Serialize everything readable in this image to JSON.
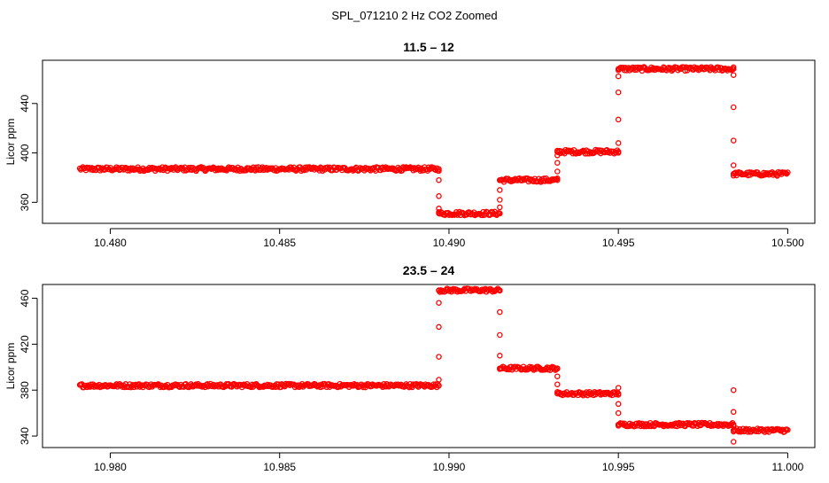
{
  "figure": {
    "title": "SPL_071210  2 Hz CO2 Zoomed"
  },
  "chart_data": [
    {
      "type": "scatter",
      "title": "11.5 – 12",
      "ylabel": "Licor ppm",
      "xlabel": "",
      "xlim": [
        10.478,
        10.5008
      ],
      "ylim": [
        343,
        475
      ],
      "xticks": [
        10.48,
        10.485,
        10.49,
        10.495,
        10.5
      ],
      "xtick_labels": [
        "10.480",
        "10.485",
        "10.490",
        "10.495",
        "10.500"
      ],
      "yticks": [
        360,
        400,
        440
      ],
      "ytick_labels": [
        "360",
        "400",
        "440"
      ],
      "marker": "open-circle",
      "color": "#ff0000",
      "grid": false,
      "x_range": [
        10.4791,
        10.5
      ],
      "segments": [
        {
          "x_start": 10.4791,
          "x_end": 10.4897,
          "y": 387
        },
        {
          "x_start": 10.4897,
          "x_end": 10.4915,
          "y": 351
        },
        {
          "x_start": 10.4915,
          "x_end": 10.4932,
          "y": 378
        },
        {
          "x_start": 10.4932,
          "x_end": 10.495,
          "y": 401
        },
        {
          "x_start": 10.495,
          "x_end": 10.4984,
          "y": 468
        },
        {
          "x_start": 10.4984,
          "x_end": 10.5,
          "y": 383
        }
      ],
      "transitions": [
        {
          "x": 10.4897,
          "y": [
            387,
            378,
            365,
            355,
            351
          ]
        },
        {
          "x": 10.4915,
          "y": [
            351,
            356,
            362,
            370,
            378
          ]
        },
        {
          "x": 10.4932,
          "y": [
            378,
            385,
            392,
            398,
            401
          ]
        },
        {
          "x": 10.495,
          "y": [
            401,
            408,
            427,
            449,
            462,
            468
          ]
        },
        {
          "x": 10.4984,
          "y": [
            468,
            463,
            437,
            410,
            390,
            383
          ]
        }
      ]
    },
    {
      "type": "scatter",
      "title": "23.5 – 24",
      "ylabel": "Licor ppm",
      "xlabel": "",
      "xlim": [
        10.978,
        11.0008
      ],
      "ylim": [
        330,
        472
      ],
      "xticks": [
        10.98,
        10.985,
        10.99,
        10.995,
        11.0
      ],
      "xtick_labels": [
        "10.980",
        "10.985",
        "10.990",
        "10.995",
        "11.000"
      ],
      "yticks": [
        340,
        380,
        420,
        460
      ],
      "ytick_labels": [
        "340",
        "380",
        "420",
        "460"
      ],
      "marker": "open-circle",
      "color": "#ff0000",
      "grid": false,
      "x_range": [
        10.9791,
        11.0
      ],
      "segments": [
        {
          "x_start": 10.9791,
          "x_end": 10.9897,
          "y": 384
        },
        {
          "x_start": 10.9897,
          "x_end": 10.9915,
          "y": 467
        },
        {
          "x_start": 10.9915,
          "x_end": 10.9932,
          "y": 399
        },
        {
          "x_start": 10.9932,
          "x_end": 10.995,
          "y": 377
        },
        {
          "x_start": 10.995,
          "x_end": 10.9984,
          "y": 350
        },
        {
          "x_start": 10.9984,
          "x_end": 11.0,
          "y": 345
        }
      ],
      "transitions": [
        {
          "x": 10.9897,
          "y": [
            384,
            389,
            409,
            435,
            456,
            467
          ]
        },
        {
          "x": 10.9915,
          "y": [
            467,
            448,
            428,
            410,
            399
          ]
        },
        {
          "x": 10.9932,
          "y": [
            399,
            392,
            385,
            377
          ]
        },
        {
          "x": 10.995,
          "y": [
            377,
            382,
            368,
            360,
            350
          ]
        },
        {
          "x": 10.9984,
          "y": [
            350,
            380,
            361,
            335,
            345
          ]
        }
      ]
    }
  ]
}
